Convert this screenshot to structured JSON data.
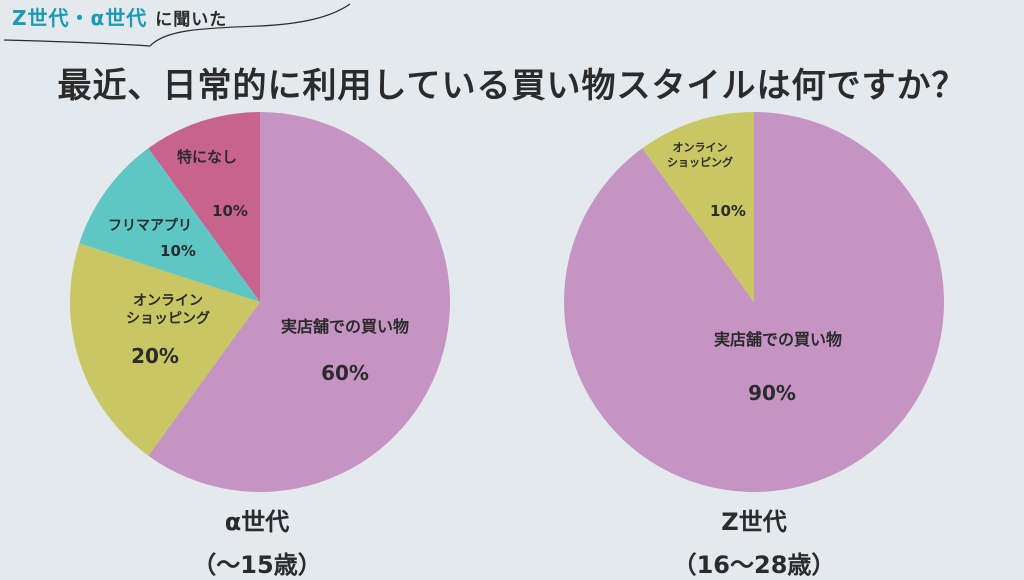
{
  "header": {
    "tag_accent": "Z世代・α世代",
    "tag_plain": "に聞いた",
    "title": "最近、日常的に利用している買い物スタイルは何ですか？"
  },
  "colors": {
    "store": "#c594c3",
    "online": "#c9c763",
    "flea": "#5ec6c4",
    "none": "#c8638e",
    "accent": "#1a9bb3"
  },
  "chart_data": [
    {
      "type": "pie",
      "caption": "α世代",
      "subcaption": "（〜15歳）",
      "slices": [
        {
          "label": "実店舗での買い物",
          "value": 60,
          "value_label": "60%",
          "color": "#c594c3"
        },
        {
          "label": "オンライン\nショッピング",
          "value": 20,
          "value_label": "20%",
          "color": "#c9c763"
        },
        {
          "label": "フリマアプリ",
          "value": 10,
          "value_label": "10%",
          "color": "#5ec6c4"
        },
        {
          "label": "特になし",
          "value": 10,
          "value_label": "10%",
          "color": "#c8638e"
        }
      ]
    },
    {
      "type": "pie",
      "caption": "Z世代",
      "subcaption": "（16〜28歳）",
      "slices": [
        {
          "label": "実店舗での買い物",
          "value": 90,
          "value_label": "90%",
          "color": "#c594c3"
        },
        {
          "label": "オンライン\nショッピング",
          "value": 10,
          "value_label": "10%",
          "color": "#c9c763"
        }
      ]
    }
  ]
}
